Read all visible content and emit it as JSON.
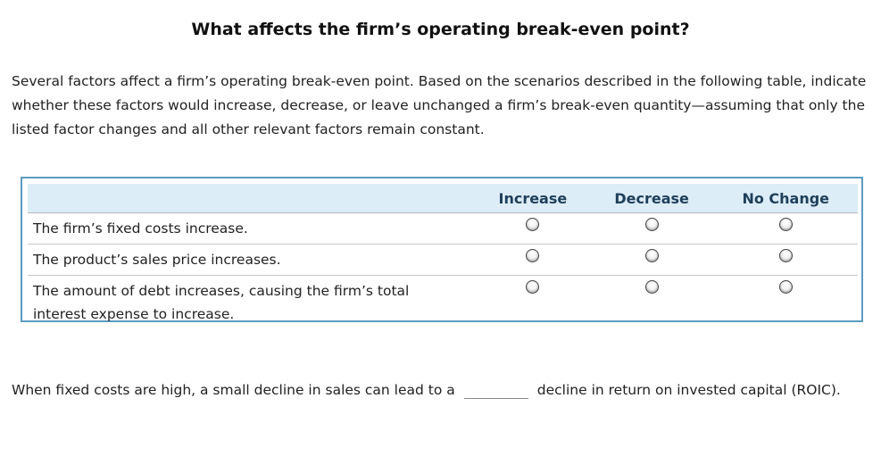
{
  "title": "What affects the firm’s operating break-even point?",
  "intro": "Several factors affect a firm’s operating break-even point. Based on the scenarios described in the following table, indicate whether these factors would increase, decrease, or leave unchanged a firm’s break-even quantity—assuming that only the listed factor changes and all other relevant factors remain constant.",
  "table": {
    "columns": [
      "Increase",
      "Decrease",
      "No Change"
    ],
    "rows": [
      "The firm’s fixed costs increase.",
      "The product’s sales price increases.",
      "The amount of debt increases, causing the firm’s total interest expense to increase."
    ]
  },
  "bottom": {
    "before_blank": "When fixed costs are high, a small decline in sales can lead to a",
    "after_blank": "decline in return on invested capital (ROIC)."
  }
}
